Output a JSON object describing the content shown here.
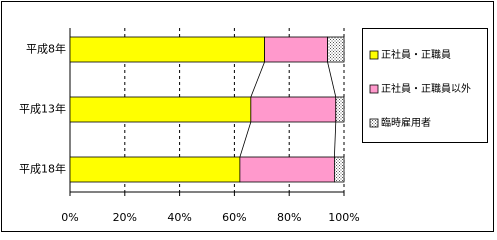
{
  "chart_data": {
    "type": "stacked_bar_horizontal",
    "categories": [
      "平成8年",
      "平成13年",
      "平成18年"
    ],
    "series": [
      {
        "name": "正社員・正職員",
        "color": "#ffff00",
        "values": [
          71,
          66,
          62
        ]
      },
      {
        "name": "正社員・正職員以外",
        "color": "#ff99cc",
        "values": [
          23,
          31,
          34.5
        ]
      },
      {
        "name": "臨時雇用者",
        "color": "#c0c0c0",
        "values": [
          6,
          3,
          3.5
        ]
      }
    ],
    "xlim": [
      0,
      100
    ],
    "xticks": [
      {
        "value": 0,
        "label": "0%"
      },
      {
        "value": 20,
        "label": "20%"
      },
      {
        "value": 40,
        "label": "40%"
      },
      {
        "value": 60,
        "label": "60%"
      },
      {
        "value": 80,
        "label": "80%"
      },
      {
        "value": 100,
        "label": "100%"
      }
    ],
    "grid": true
  }
}
